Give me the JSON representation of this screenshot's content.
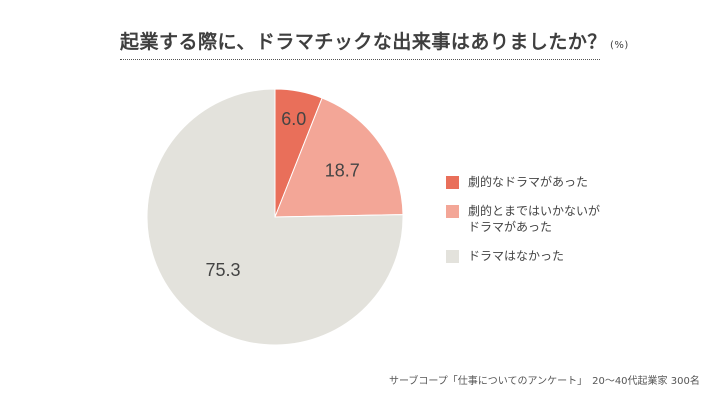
{
  "title": {
    "main": "起業する際に、ドラマチックな出来事はありましたか？",
    "unit": "(%)"
  },
  "chart_data": {
    "type": "pie",
    "categories": [
      "劇的なドラマがあった",
      "劇的とまではいかないがドラマがあった",
      "ドラマはなかった"
    ],
    "values": [
      6.0,
      18.7,
      75.3
    ],
    "value_labels": [
      "6.0",
      "18.7",
      "75.3"
    ],
    "colors": [
      "#e96f5a",
      "#f3a697",
      "#e3e2dc"
    ],
    "start": "12 o'clock, clockwise",
    "legend_position": "right"
  },
  "legend": [
    {
      "lines": [
        "劇的なドラマがあった"
      ],
      "color": "#e96f5a"
    },
    {
      "lines": [
        "劇的とまではいかないが",
        "ドラマがあった"
      ],
      "color": "#f3a697"
    },
    {
      "lines": [
        "ドラマはなかった"
      ],
      "color": "#e3e2dc"
    }
  ],
  "source": "サーブコープ「仕事についてのアンケート」　20〜40代起業家 300名"
}
